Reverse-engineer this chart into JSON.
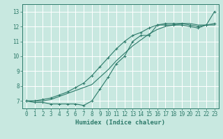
{
  "xlabel": "Humidex (Indice chaleur)",
  "bg_color": "#c8e8e0",
  "grid_color": "#ffffff",
  "line_color": "#2d7a6a",
  "xlim": [
    -0.5,
    23.5
  ],
  "ylim": [
    6.5,
    13.5
  ],
  "xticks": [
    0,
    1,
    2,
    3,
    4,
    5,
    6,
    7,
    8,
    9,
    10,
    11,
    12,
    13,
    14,
    15,
    16,
    17,
    18,
    19,
    20,
    21,
    22,
    23
  ],
  "yticks": [
    7,
    8,
    9,
    10,
    11,
    12,
    13
  ],
  "line1_x": [
    0,
    1,
    2,
    3,
    4,
    5,
    6,
    7,
    8,
    9,
    10,
    11,
    12,
    13,
    14,
    15,
    16,
    17,
    18,
    19,
    20,
    21,
    22,
    23
  ],
  "line1_y": [
    7.0,
    6.9,
    6.9,
    6.8,
    6.8,
    6.8,
    6.8,
    6.7,
    7.0,
    7.8,
    8.6,
    9.5,
    10.0,
    11.0,
    11.4,
    11.4,
    12.1,
    12.1,
    12.1,
    12.1,
    12.0,
    11.9,
    12.1,
    13.0
  ],
  "line2_x": [
    0,
    1,
    2,
    3,
    4,
    5,
    6,
    7,
    8,
    9,
    10,
    11,
    12,
    13,
    14,
    15,
    16,
    17,
    18,
    19,
    20,
    21,
    22,
    23
  ],
  "line2_y": [
    7.0,
    7.0,
    7.0,
    7.1,
    7.3,
    7.5,
    7.7,
    7.9,
    8.1,
    8.6,
    9.1,
    9.7,
    10.2,
    10.7,
    11.1,
    11.5,
    11.8,
    12.0,
    12.1,
    12.2,
    12.2,
    12.1,
    12.1,
    12.1
  ],
  "line3_x": [
    0,
    1,
    2,
    3,
    4,
    5,
    6,
    7,
    8,
    9,
    10,
    11,
    12,
    13,
    14,
    15,
    16,
    17,
    18,
    19,
    20,
    21,
    22,
    23
  ],
  "line3_y": [
    7.0,
    7.0,
    7.1,
    7.2,
    7.4,
    7.6,
    7.9,
    8.2,
    8.7,
    9.3,
    9.9,
    10.5,
    11.0,
    11.4,
    11.6,
    11.9,
    12.1,
    12.2,
    12.2,
    12.2,
    12.1,
    12.0,
    12.1,
    12.2
  ],
  "xlabel_fontsize": 6.5,
  "tick_fontsize": 5.5
}
